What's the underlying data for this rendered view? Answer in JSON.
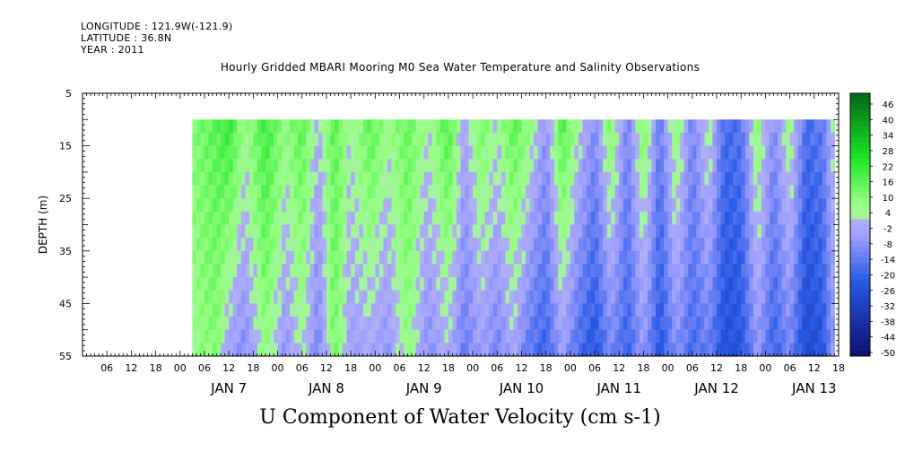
{
  "header": {
    "longitude": "LONGITUDE : 121.9W(-121.9)",
    "latitude": "LATITUDE : 36.8N",
    "year": "YEAR : 2011"
  },
  "chart_data": {
    "type": "heatmap",
    "title": "Hourly Gridded MBARI Mooring M0 Sea Water Temperature and Salinity Observations",
    "xlabel": "U Component of Water Velocity (cm s-1)",
    "ylabel": "DEPTH (m)",
    "y_axis": {
      "range": [
        5,
        55
      ],
      "inverted": true,
      "ticks": [
        5,
        15,
        25,
        35,
        45,
        55
      ]
    },
    "x_axis": {
      "range_hours_from_jan6_00": [
        0,
        186
      ],
      "hour_tick_labels": [
        "06",
        "12",
        "18",
        "00"
      ],
      "day_labels": [
        "JAN  7",
        "JAN  8",
        "JAN  9",
        "JAN 10",
        "JAN 11",
        "JAN 12",
        "JAN 13"
      ]
    },
    "data_extent": {
      "x_start": "JAN 7 03:00",
      "x_end": "JAN 13 23:00",
      "depth_range": [
        10,
        55
      ]
    },
    "colorbar": {
      "labels": [
        "46",
        "40",
        "34",
        "28",
        "22",
        "16",
        "10",
        "4",
        "-2",
        "-8",
        "-14",
        "-20",
        "-26",
        "-32",
        "-38",
        "-44",
        "-50"
      ],
      "min": -50,
      "max": 50
    },
    "velocity_profile": {
      "time_hours_from_jan6_00": [
        27,
        33,
        36,
        40,
        45,
        50,
        54,
        58,
        62,
        66,
        71,
        75,
        80,
        85,
        90,
        94,
        98,
        102,
        106,
        110,
        114,
        118,
        122,
        126,
        130,
        134,
        138,
        142,
        146,
        150,
        154,
        158,
        162,
        166,
        170,
        174,
        178,
        182,
        185
      ],
      "surface_u": [
        8,
        14,
        20,
        4,
        18,
        6,
        14,
        -2,
        14,
        2,
        14,
        4,
        12,
        2,
        16,
        -4,
        10,
        2,
        14,
        6,
        -8,
        16,
        2,
        -10,
        10,
        -12,
        10,
        -14,
        8,
        -12,
        4,
        -18,
        -16,
        8,
        -10,
        6,
        -18,
        -14,
        2
      ],
      "bottom_u": [
        4,
        8,
        -6,
        -10,
        6,
        -8,
        2,
        -12,
        10,
        -6,
        -4,
        -8,
        6,
        -10,
        -2,
        -14,
        -6,
        -12,
        -4,
        -16,
        -20,
        -6,
        -18,
        -24,
        -12,
        -20,
        -8,
        -24,
        -10,
        -18,
        -14,
        -26,
        -24,
        -8,
        -20,
        -12,
        -28,
        -24,
        -6
      ]
    },
    "grid": false,
    "legend": "right colorbar"
  }
}
